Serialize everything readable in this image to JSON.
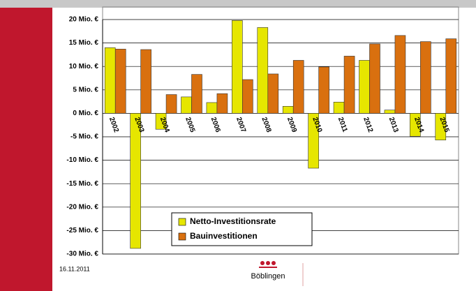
{
  "chart_data": {
    "type": "bar",
    "categories": [
      "2002",
      "2003",
      "2004",
      "2005",
      "2006",
      "2007",
      "2008",
      "2009",
      "2010",
      "2011",
      "2012",
      "2013",
      "2014",
      "2015"
    ],
    "series": [
      {
        "name": "Netto-Investitionsrate",
        "color": "#e6e600",
        "values": [
          14,
          -28.8,
          -3.4,
          3.5,
          2.3,
          19.8,
          18.3,
          1.5,
          -11.7,
          2.4,
          11.3,
          0.7,
          -4.9,
          -5.7
        ]
      },
      {
        "name": "Bauinvestitionen",
        "color": "#d9700f",
        "values": [
          13.7,
          13.6,
          4.0,
          8.3,
          4.2,
          7.2,
          8.4,
          11.3,
          9.9,
          12.2,
          14.8,
          16.6,
          15.3,
          15.9
        ]
      }
    ],
    "ylim": [
      -30,
      20
    ],
    "yticks": [
      {
        "value": 20,
        "label": "20 Mio. €"
      },
      {
        "value": 15,
        "label": "15 Mio. €"
      },
      {
        "value": 10,
        "label": "10 Mio. €"
      },
      {
        "value": 5,
        "label": "5 Mio. €"
      },
      {
        "value": 0,
        "label": "0 Mio. €"
      },
      {
        "value": -5,
        "label": "-5 Mio. €"
      },
      {
        "value": -10,
        "label": "-10 Mio. €"
      },
      {
        "value": -15,
        "label": "-15 Mio. €"
      },
      {
        "value": -20,
        "label": "-20 Mio. €"
      },
      {
        "value": -25,
        "label": "-25 Mio. €"
      },
      {
        "value": -30,
        "label": "-30 Mio. €"
      }
    ],
    "grid": true
  },
  "footer": {
    "date": "16.11.2011",
    "logo": "Böblingen"
  }
}
